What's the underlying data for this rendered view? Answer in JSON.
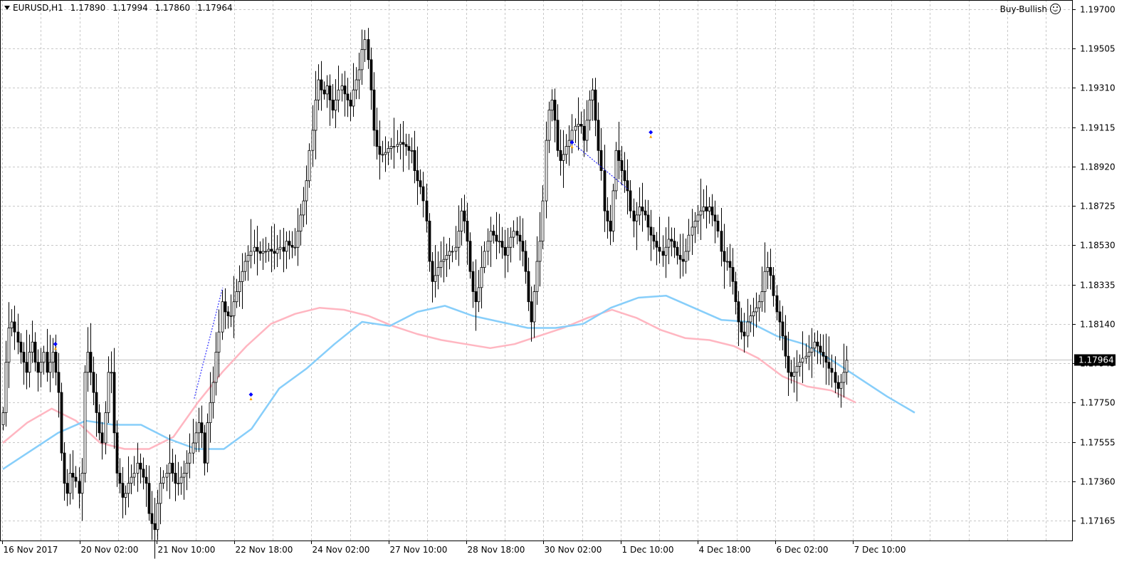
{
  "header": {
    "symbol": "EURUSD,H1",
    "open": "1.17890",
    "high": "1.17994",
    "low": "1.17860",
    "close": "1.17964"
  },
  "signal": {
    "label": "Buy-Bullish",
    "icon": "smiley-icon"
  },
  "chart_data": {
    "type": "candlestick",
    "symbol": "EURUSD",
    "timeframe": "H1",
    "y_ticks": [
      "1.19700",
      "1.19505",
      "1.19310",
      "1.19115",
      "1.18920",
      "1.18725",
      "1.18530",
      "1.18335",
      "1.18140",
      "1.17945",
      "1.17750",
      "1.17555",
      "1.17360",
      "1.17165"
    ],
    "y_range": [
      1.1705,
      1.1975
    ],
    "x_tick_labels": [
      "16 Nov 2017",
      "20 Nov 02:00",
      "21 Nov 10:00",
      "22 Nov 18:00",
      "24 Nov 02:00",
      "27 Nov 10:00",
      "28 Nov 18:00",
      "30 Nov 02:00",
      "1 Dec 10:00",
      "4 Dec 18:00",
      "6 Dec 02:00",
      "7 Dec 10:00"
    ],
    "current_price": "1.17964",
    "grid": true,
    "colors": {
      "candle": "#000000",
      "fast_ma": "#ffb6c1",
      "slow_ma": "#87cefa",
      "grid": "#c8c8c8",
      "price_label_bg": "#000000",
      "price_label_text": "#ffffff",
      "arrow_blue": "#0000ff",
      "arrow_orange": "#ffa500"
    },
    "closes": [
      1.177,
      1.1795,
      1.1812,
      1.1815,
      1.181,
      1.1805,
      1.18,
      1.1795,
      1.179,
      1.18,
      1.1805,
      1.1795,
      1.179,
      1.1795,
      1.18,
      1.179,
      1.1795,
      1.18,
      1.179,
      1.178,
      1.175,
      1.1735,
      1.173,
      1.174,
      1.1738,
      1.1736,
      1.173,
      1.174,
      1.179,
      1.18,
      1.179,
      1.178,
      1.177,
      1.176,
      1.1755,
      1.177,
      1.179,
      1.179,
      1.176,
      1.174,
      1.1735,
      1.1728,
      1.173,
      1.1735,
      1.1738,
      1.174,
      1.1745,
      1.1742,
      1.1738,
      1.1735,
      1.172,
      1.1715,
      1.1712,
      1.1725,
      1.1735,
      1.1738,
      1.174,
      1.1745,
      1.174,
      1.1735,
      1.1735,
      1.1738,
      1.174,
      1.1745,
      1.175,
      1.1755,
      1.176,
      1.1765,
      1.176,
      1.1745,
      1.1765,
      1.1775,
      1.1785,
      1.18,
      1.181,
      1.1825,
      1.182,
      1.1818,
      1.1818,
      1.1825,
      1.183,
      1.1835,
      1.184,
      1.1845,
      1.1848,
      1.185,
      1.1852,
      1.185,
      1.1849,
      1.185,
      1.185,
      1.1851,
      1.185,
      1.1849,
      1.1851,
      1.1852,
      1.185,
      1.1855,
      1.1853,
      1.1852,
      1.1852,
      1.186,
      1.1868,
      1.1875,
      1.1885,
      1.19,
      1.191,
      1.1925,
      1.1935,
      1.193,
      1.1928,
      1.1932,
      1.1925,
      1.192,
      1.1925,
      1.193,
      1.1932,
      1.1928,
      1.1925,
      1.1922,
      1.193,
      1.1935,
      1.194,
      1.195,
      1.1955,
      1.1945,
      1.193,
      1.191,
      1.1902,
      1.1898,
      1.1898,
      1.1899,
      1.1901,
      1.1902,
      1.1902,
      1.1903,
      1.1904,
      1.1903,
      1.1902,
      1.19,
      1.19,
      1.189,
      1.1885,
      1.1882,
      1.1875,
      1.1865,
      1.1845,
      1.1835,
      1.1838,
      1.1842,
      1.1845,
      1.1846,
      1.1848,
      1.185,
      1.185,
      1.1852,
      1.186,
      1.187,
      1.1865,
      1.1855,
      1.184,
      1.183,
      1.1825,
      1.1832,
      1.1842,
      1.185,
      1.1855,
      1.186,
      1.1858,
      1.1855,
      1.1855,
      1.1852,
      1.1848,
      1.1852,
      1.1857,
      1.186,
      1.1858,
      1.1855,
      1.185,
      1.184,
      1.1825,
      1.1815,
      1.183,
      1.1845,
      1.1855,
      1.1875,
      1.1905,
      1.192,
      1.1925,
      1.1915,
      1.19,
      1.1895,
      1.1898,
      1.1902,
      1.1905,
      1.191,
      1.1912,
      1.1913,
      1.1912,
      1.1905,
      1.1915,
      1.1925,
      1.193,
      1.1915,
      1.19,
      1.189,
      1.187,
      1.1865,
      1.186,
      1.188,
      1.19,
      1.1895,
      1.189,
      1.1885,
      1.188,
      1.187,
      1.1865,
      1.1868,
      1.1872,
      1.187,
      1.1868,
      1.1862,
      1.1858,
      1.1855,
      1.1852,
      1.185,
      1.1848,
      1.1852,
      1.1856,
      1.1855,
      1.1852,
      1.1848,
      1.1846,
      1.1845,
      1.185,
      1.1858,
      1.1862,
      1.1865,
      1.1868,
      1.187,
      1.1872,
      1.187,
      1.1872,
      1.1868,
      1.1865,
      1.186,
      1.185,
      1.1845,
      1.1845,
      1.1842,
      1.1835,
      1.1825,
      1.1815,
      1.181,
      1.1808,
      1.1815,
      1.1818,
      1.182,
      1.1822,
      1.1825,
      1.183,
      1.184,
      1.1842,
      1.1838,
      1.1828,
      1.182,
      1.1815,
      1.1808,
      1.1798,
      1.179,
      1.1788,
      1.179,
      1.1793,
      1.1795,
      1.1797,
      1.1798,
      1.18,
      1.1802,
      1.1805,
      1.1803,
      1.18,
      1.1798,
      1.1795,
      1.1792,
      1.179,
      1.1785,
      1.1782,
      1.1785,
      1.179,
      1.1796
    ],
    "pink_ma": [
      1.1755,
      1.1765,
      1.1772,
      1.1766,
      1.1755,
      1.1752,
      1.1752,
      1.1758,
      1.1775,
      1.179,
      1.1803,
      1.1814,
      1.1819,
      1.1822,
      1.1821,
      1.1818,
      1.1813,
      1.1809,
      1.1806,
      1.1804,
      1.1802,
      1.1804,
      1.1808,
      1.1812,
      1.1817,
      1.1821,
      1.1817,
      1.1811,
      1.1807,
      1.1806,
      1.1803,
      1.1797,
      1.1788,
      1.1783,
      1.1781,
      1.1775
    ],
    "blue_ma": [
      1.1742,
      1.1751,
      1.176,
      1.1766,
      1.1764,
      1.1764,
      1.1757,
      1.1752,
      1.1752,
      1.1762,
      1.1782,
      1.1792,
      1.1804,
      1.1815,
      1.1813,
      1.182,
      1.1823,
      1.1818,
      1.1815,
      1.1812,
      1.1812,
      1.1814,
      1.1822,
      1.1827,
      1.1828,
      1.1822,
      1.1816,
      1.1815,
      1.1808,
      1.1804,
      1.1796,
      1.1787,
      1.1778,
      1.177
    ],
    "arrows": [
      {
        "bar": 18,
        "type": "buy",
        "price": 1.1804
      },
      {
        "bar": 85,
        "type": "sell",
        "price": 1.1779
      },
      {
        "bar": 195,
        "type": "buy",
        "price": 1.1904
      },
      {
        "bar": 222,
        "type": "buy",
        "price": 1.1909
      }
    ]
  }
}
